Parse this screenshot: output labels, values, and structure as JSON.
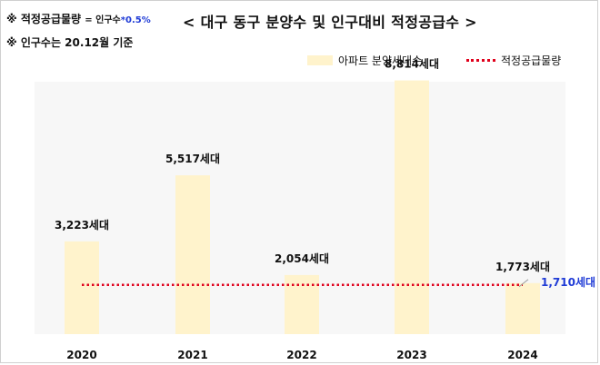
{
  "notes": {
    "formula_prefix": "※ 적정공급물량",
    "formula_eq": "= 인구수",
    "formula_rate": "*0.5%",
    "basis": "※ 인구수는 20.12월  기준"
  },
  "chart_data": {
    "type": "bar",
    "title": "< 대구 동구 분양수 및 인구대비 적정공급수 >",
    "categories": [
      "2020",
      "2021",
      "2022",
      "2023",
      "2024"
    ],
    "unit_suffix": "세대",
    "series": [
      {
        "name": "아파트 분양세대수",
        "kind": "bar",
        "color": "#fff3cc",
        "values": [
          3223,
          5517,
          2054,
          8814,
          1773
        ],
        "labels": [
          "3,223세대",
          "5,517세대",
          "2,054세대",
          "8,814세대",
          "1,773세대"
        ]
      },
      {
        "name": "적정공급물량",
        "kind": "line",
        "style": "dotted",
        "color": "#e0001b",
        "value": 1710,
        "label": "1,710세대"
      }
    ],
    "ylim": [
      0,
      10000
    ],
    "xlabel": "",
    "ylabel": "",
    "grid": false,
    "legend": "top-right",
    "label_color_line": "#1f3bd6",
    "plot_background": "#f7f7f7"
  }
}
